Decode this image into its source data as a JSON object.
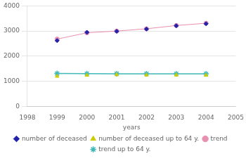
{
  "chart_data": {
    "type": "line",
    "xlabel": "years",
    "x": [
      1999,
      2000,
      2001,
      2002,
      2003,
      2004
    ],
    "series": [
      {
        "name": "number of deceased",
        "color": "#2222aa",
        "values": [
          2620,
          2950,
          2990,
          3080,
          3210,
          3290
        ],
        "marker": "diamond",
        "line_style": "none"
      },
      {
        "name": "trend",
        "color": "#e890b0",
        "values": [
          2680,
          2930,
          3000,
          3090,
          3220,
          3310
        ],
        "marker": "circle",
        "line_style": "solid"
      },
      {
        "name": "number of deceased up to 64 y.",
        "color": "#cccc00",
        "values": [
          1200,
          1240,
          1260,
          1250,
          1250,
          1240
        ],
        "marker": "triangle",
        "line_style": "none"
      },
      {
        "name": "trend up to 64 y.",
        "color": "#40b8b8",
        "values": [
          1310,
          1305,
          1300,
          1300,
          1298,
          1295
        ],
        "marker": "star",
        "line_style": "solid"
      }
    ],
    "xlim": [
      1998,
      2005
    ],
    "xticks": [
      1998,
      1999,
      2000,
      2001,
      2002,
      2003,
      2004,
      2005
    ],
    "ylim": [
      0,
      4000
    ],
    "yticks": [
      0,
      1000,
      2000,
      3000,
      4000
    ],
    "grid": "y",
    "legend": "bottom"
  }
}
